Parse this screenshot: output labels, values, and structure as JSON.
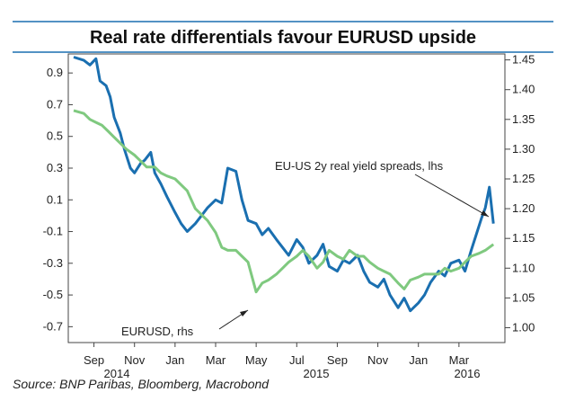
{
  "chart_data": {
    "type": "line",
    "title": "Real rate differentials favour EURUSD upside",
    "source": "Source:  BNP Paribas, Bloomberg, Macrobond",
    "x_tick_labels": [
      "Sep",
      "Nov",
      "Jan",
      "Mar",
      "May",
      "Jul",
      "Sep",
      "Nov",
      "Jan",
      "Mar"
    ],
    "year_labels": [
      "2014",
      "2015",
      "2016"
    ],
    "left_axis": {
      "ylim": [
        -0.8,
        1.02
      ],
      "ticks": [
        0.9,
        0.7,
        0.5,
        0.3,
        0.1,
        -0.1,
        -0.3,
        -0.5,
        -0.7
      ],
      "tick_labels": [
        "0.9",
        "0.7",
        "0.5",
        "0.3",
        "0.1",
        "-0.1",
        "-0.3",
        "-0.5",
        "-0.7"
      ]
    },
    "right_axis": {
      "ylim": [
        0.975,
        1.46
      ],
      "ticks": [
        1.45,
        1.4,
        1.35,
        1.3,
        1.25,
        1.2,
        1.15,
        1.1,
        1.05,
        1.0
      ],
      "tick_labels": [
        "1.45",
        "1.40",
        "1.35",
        "1.30",
        "1.25",
        "1.20",
        "1.15",
        "1.10",
        "1.05",
        "1.00"
      ]
    },
    "x_range": [
      0,
      21
    ],
    "series": [
      {
        "name": "EU-US 2y real yield spreads, lhs",
        "axis": "left",
        "color": "#1a6fb0",
        "annotation": "EU-US 2y real yield spreads, lhs",
        "x": [
          0,
          0.5,
          0.8,
          1.1,
          1.3,
          1.6,
          1.8,
          2.0,
          2.3,
          2.5,
          2.8,
          3.0,
          3.3,
          3.5,
          3.8,
          4.0,
          4.3,
          4.6,
          5.0,
          5.3,
          5.6,
          6.0,
          6.3,
          6.6,
          7.0,
          7.3,
          7.6,
          8.0,
          8.3,
          8.6,
          9.0,
          9.3,
          9.6,
          10.0,
          10.3,
          10.6,
          11.0,
          11.3,
          11.6,
          12.0,
          12.3,
          12.6,
          13.0,
          13.3,
          13.6,
          14.0,
          14.3,
          14.6,
          15.0,
          15.3,
          15.6,
          16.0,
          16.3,
          16.6,
          17.0,
          17.3,
          17.6,
          18.0,
          18.3,
          18.6,
          19.0,
          19.3,
          19.6,
          19.9,
          20.1,
          20.3,
          20.5,
          20.7
        ],
        "values": [
          1.0,
          0.98,
          0.95,
          0.99,
          0.85,
          0.82,
          0.75,
          0.62,
          0.52,
          0.42,
          0.3,
          0.27,
          0.33,
          0.35,
          0.4,
          0.27,
          0.2,
          0.12,
          0.02,
          -0.05,
          -0.1,
          -0.05,
          0.0,
          0.05,
          0.1,
          0.08,
          0.3,
          0.28,
          0.1,
          -0.03,
          -0.05,
          -0.12,
          -0.08,
          -0.15,
          -0.2,
          -0.25,
          -0.15,
          -0.2,
          -0.3,
          -0.25,
          -0.18,
          -0.32,
          -0.35,
          -0.28,
          -0.3,
          -0.25,
          -0.35,
          -0.42,
          -0.45,
          -0.4,
          -0.5,
          -0.58,
          -0.52,
          -0.6,
          -0.55,
          -0.5,
          -0.42,
          -0.35,
          -0.38,
          -0.3,
          -0.28,
          -0.35,
          -0.22,
          -0.1,
          -0.02,
          0.05,
          0.18,
          -0.05
        ]
      },
      {
        "name": "EURUSD, rhs",
        "axis": "right",
        "color": "#7fc97f",
        "annotation": "EURUSD, rhs",
        "x": [
          0,
          0.5,
          0.8,
          1.1,
          1.4,
          1.7,
          2.0,
          2.3,
          2.6,
          3.0,
          3.3,
          3.6,
          4.0,
          4.3,
          4.6,
          5.0,
          5.3,
          5.6,
          6.0,
          6.3,
          6.6,
          7.0,
          7.3,
          7.6,
          8.0,
          8.3,
          8.6,
          9.0,
          9.3,
          9.6,
          10.0,
          10.3,
          10.6,
          11.0,
          11.3,
          11.6,
          12.0,
          12.3,
          12.6,
          13.0,
          13.3,
          13.6,
          14.0,
          14.3,
          14.6,
          15.0,
          15.3,
          15.6,
          16.0,
          16.3,
          16.6,
          17.0,
          17.3,
          17.6,
          18.0,
          18.3,
          18.6,
          19.0,
          19.3,
          19.6,
          20.0,
          20.3,
          20.7
        ],
        "values": [
          1.365,
          1.36,
          1.35,
          1.345,
          1.34,
          1.33,
          1.32,
          1.31,
          1.3,
          1.29,
          1.28,
          1.27,
          1.27,
          1.26,
          1.255,
          1.25,
          1.24,
          1.23,
          1.2,
          1.19,
          1.18,
          1.16,
          1.135,
          1.13,
          1.13,
          1.12,
          1.11,
          1.06,
          1.075,
          1.08,
          1.09,
          1.1,
          1.11,
          1.12,
          1.13,
          1.12,
          1.1,
          1.11,
          1.13,
          1.12,
          1.115,
          1.13,
          1.12,
          1.12,
          1.11,
          1.1,
          1.095,
          1.09,
          1.075,
          1.065,
          1.08,
          1.085,
          1.09,
          1.09,
          1.09,
          1.1,
          1.095,
          1.1,
          1.11,
          1.12,
          1.125,
          1.13,
          1.14
        ]
      }
    ]
  }
}
